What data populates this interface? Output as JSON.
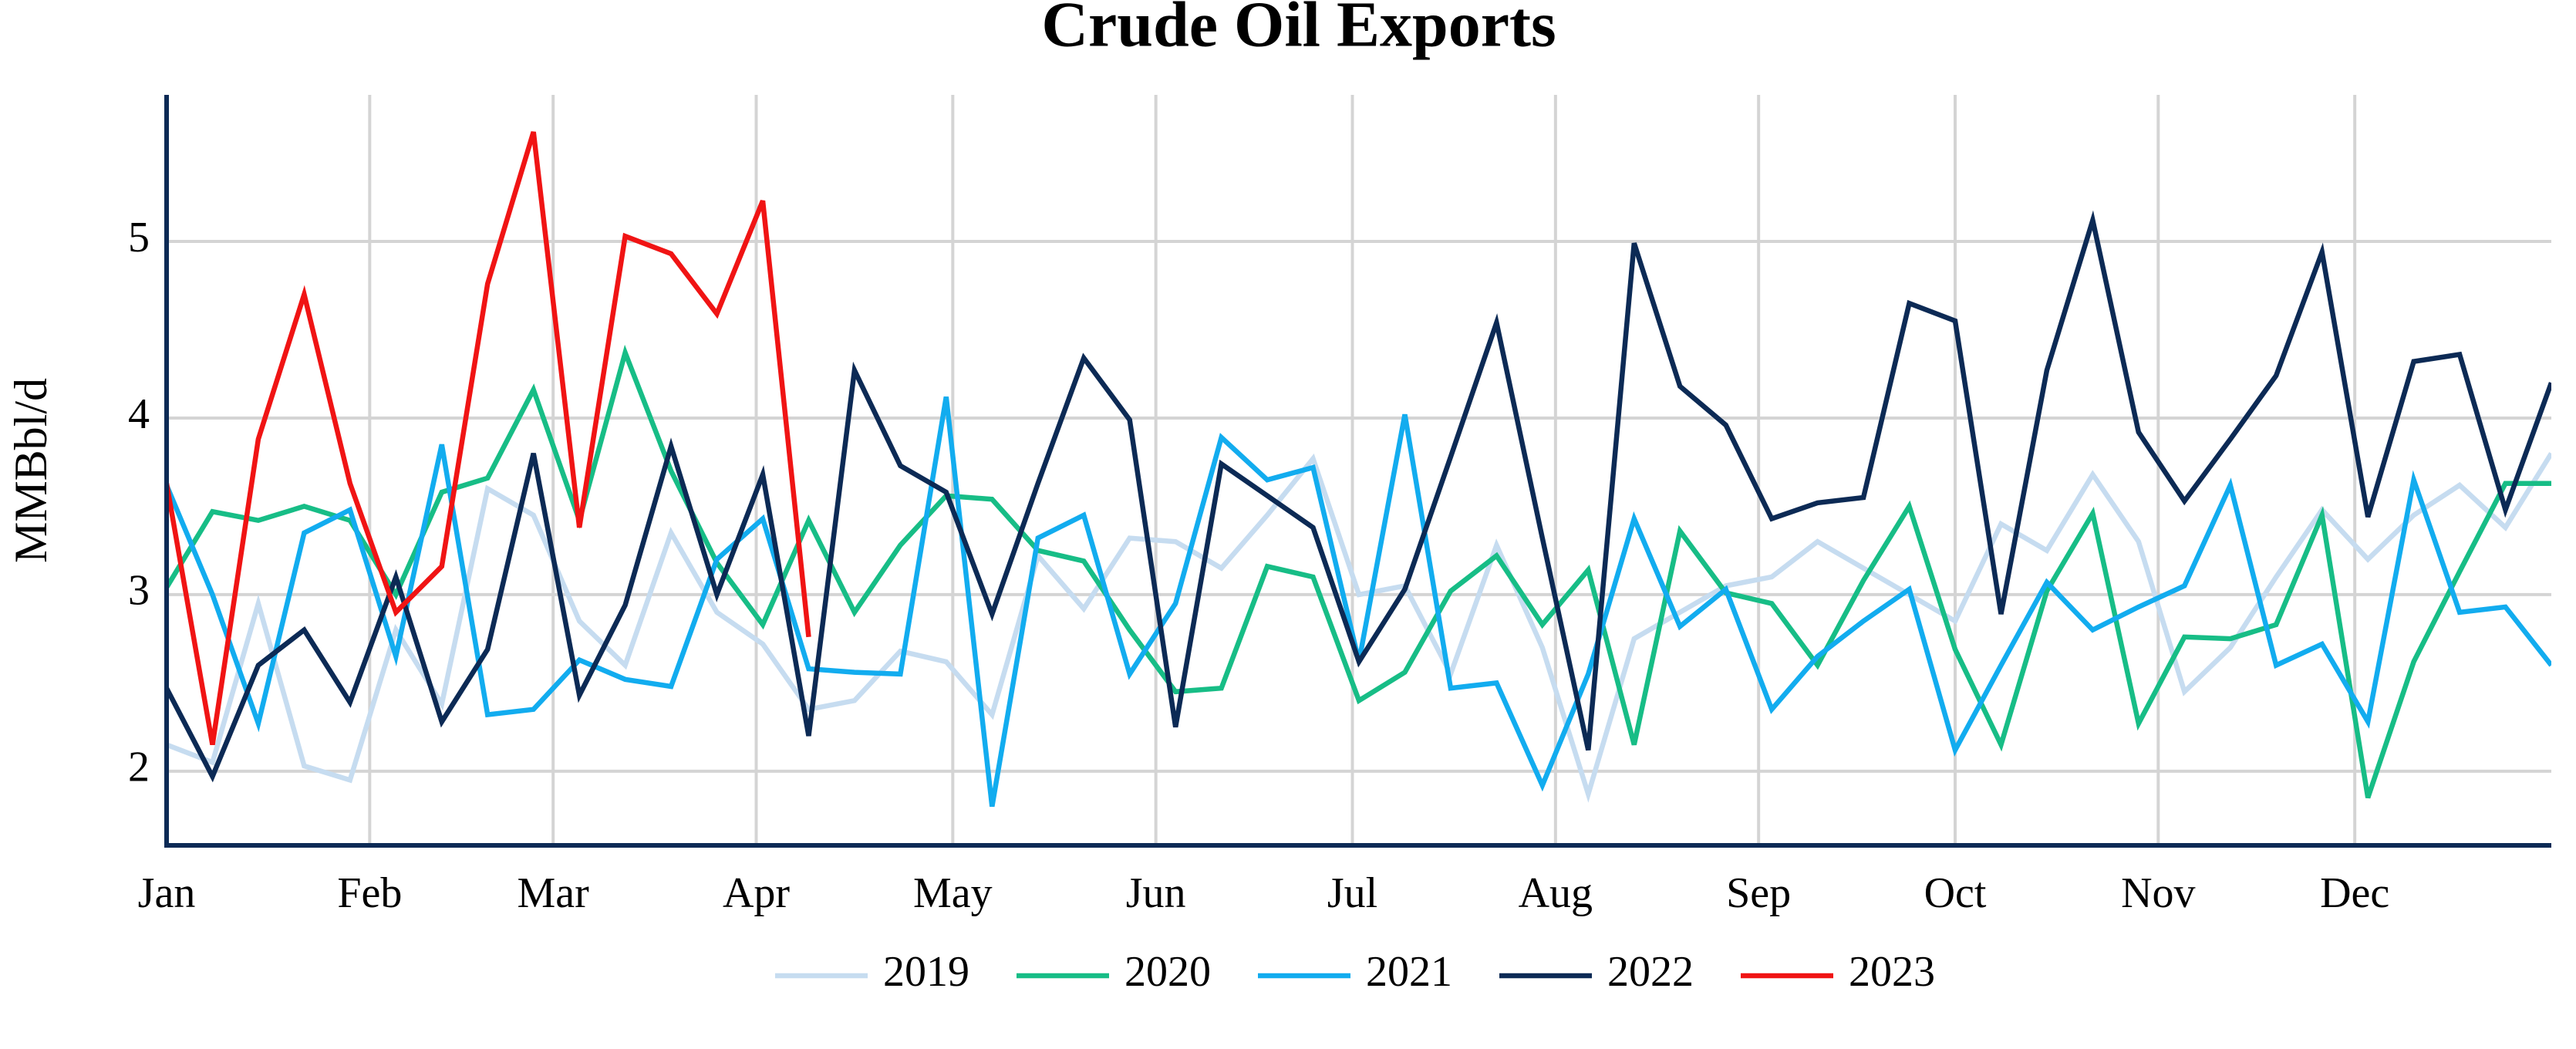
{
  "chart_data": {
    "type": "line",
    "title": "Crude Oil Exports",
    "ylabel": "MMBbl/d",
    "x": [
      0,
      7,
      14,
      21,
      28,
      35,
      42,
      49,
      56,
      63,
      70,
      77,
      84,
      91,
      98,
      105,
      112,
      119,
      126,
      133,
      140,
      147,
      154,
      161,
      168,
      175,
      182,
      189,
      196,
      203,
      210,
      217,
      224,
      231,
      238,
      245,
      252,
      259,
      266,
      273,
      280,
      287,
      294,
      301,
      308,
      315,
      322,
      329,
      336,
      343,
      350,
      357,
      364
    ],
    "xlim": [
      0,
      364
    ],
    "xticks": [
      {
        "value": 0,
        "label": "Jan"
      },
      {
        "value": 31,
        "label": "Feb"
      },
      {
        "value": 59,
        "label": "Mar"
      },
      {
        "value": 90,
        "label": "Apr"
      },
      {
        "value": 120,
        "label": "May"
      },
      {
        "value": 151,
        "label": "Jun"
      },
      {
        "value": 181,
        "label": "Jul"
      },
      {
        "value": 212,
        "label": "Aug"
      },
      {
        "value": 243,
        "label": "Sep"
      },
      {
        "value": 273,
        "label": "Oct"
      },
      {
        "value": 304,
        "label": "Nov"
      },
      {
        "value": 334,
        "label": "Dec"
      }
    ],
    "ylim": [
      1.58,
      5.83
    ],
    "yticks": [
      2,
      3,
      4,
      5
    ],
    "grid": true,
    "legend": "bottom",
    "series": [
      {
        "name": "2019",
        "color": "#c6dcf0",
        "values": [
          2.15,
          2.05,
          2.95,
          2.03,
          1.95,
          2.8,
          2.38,
          3.6,
          3.45,
          2.85,
          2.6,
          3.35,
          2.9,
          2.72,
          2.35,
          2.4,
          2.68,
          2.62,
          2.32,
          3.22,
          2.92,
          3.32,
          3.3,
          3.15,
          3.45,
          3.77,
          3.0,
          3.05,
          2.55,
          3.28,
          2.7,
          1.87,
          2.75,
          2.9,
          3.05,
          3.1,
          3.3,
          3.15,
          3.0,
          2.85,
          3.4,
          3.25,
          3.68,
          3.3,
          2.45,
          2.7,
          3.1,
          3.48,
          3.2,
          3.45,
          3.62,
          3.38,
          3.8
        ]
      },
      {
        "name": "2020",
        "color": "#17bd86",
        "values": [
          3.04,
          3.47,
          3.42,
          3.5,
          3.42,
          3.0,
          3.58,
          3.66,
          4.16,
          3.42,
          4.37,
          3.7,
          3.18,
          2.83,
          3.42,
          2.9,
          3.28,
          3.56,
          3.54,
          3.25,
          3.19,
          2.8,
          2.45,
          2.47,
          3.16,
          3.1,
          2.4,
          2.56,
          3.02,
          3.22,
          2.83,
          3.14,
          2.15,
          3.36,
          3.01,
          2.95,
          2.6,
          3.08,
          3.5,
          2.69,
          2.15,
          3.02,
          3.46,
          2.27,
          2.76,
          2.75,
          2.83,
          3.45,
          1.85,
          2.62,
          3.13,
          3.63,
          3.63
        ]
      },
      {
        "name": "2021",
        "color": "#12acef",
        "values": [
          3.62,
          3.0,
          2.27,
          3.35,
          3.48,
          2.65,
          3.85,
          2.32,
          2.35,
          2.63,
          2.52,
          2.48,
          3.2,
          3.43,
          2.58,
          2.56,
          2.55,
          4.12,
          1.8,
          3.32,
          3.45,
          2.55,
          2.95,
          3.89,
          3.65,
          3.72,
          2.62,
          4.02,
          2.47,
          2.5,
          1.92,
          2.55,
          3.43,
          2.82,
          3.03,
          2.35,
          2.65,
          2.85,
          3.03,
          2.12,
          2.6,
          3.07,
          2.8,
          2.93,
          3.05,
          3.62,
          2.6,
          2.72,
          2.28,
          3.65,
          2.9,
          2.93,
          2.6
        ]
      },
      {
        "name": "2022",
        "color": "#0c2a55",
        "values": [
          2.47,
          1.97,
          2.6,
          2.8,
          2.39,
          3.1,
          2.28,
          2.69,
          3.8,
          2.43,
          2.94,
          3.84,
          3.0,
          3.68,
          2.2,
          4.27,
          3.73,
          3.58,
          2.89,
          3.63,
          4.34,
          3.99,
          2.25,
          3.74,
          3.56,
          3.38,
          2.62,
          3.03,
          3.78,
          4.54,
          3.32,
          2.12,
          4.99,
          4.18,
          3.96,
          3.43,
          3.52,
          3.55,
          4.65,
          4.55,
          2.89,
          4.27,
          5.12,
          3.92,
          3.53,
          3.88,
          4.24,
          4.94,
          3.44,
          4.32,
          4.36,
          3.48,
          4.2
        ]
      },
      {
        "name": "2023",
        "color": "#f01414",
        "values": [
          3.63,
          2.15,
          3.88,
          4.7,
          3.63,
          2.9,
          3.16,
          4.76,
          5.62,
          3.38,
          5.03,
          4.93,
          4.59,
          5.23,
          2.76,
          null,
          null,
          null,
          null,
          null,
          null,
          null,
          null,
          null,
          null,
          null,
          null,
          null,
          null,
          null,
          null,
          null,
          null,
          null,
          null,
          null,
          null,
          null,
          null,
          null,
          null,
          null,
          null,
          null,
          null,
          null,
          null,
          null,
          null,
          null,
          null,
          null,
          null
        ]
      }
    ]
  }
}
